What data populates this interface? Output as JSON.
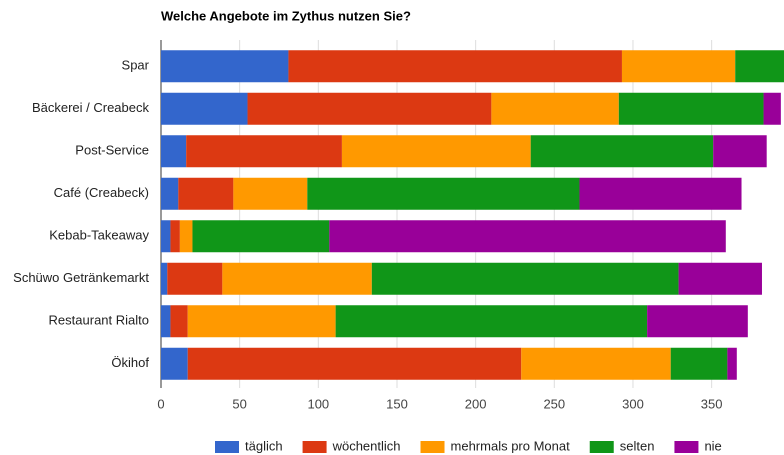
{
  "chart_data": {
    "type": "stacked_bar_horizontal",
    "title": "Welche Angebote im Zythus nutzen Sie?",
    "categories": [
      "Spar",
      "Bäckerei / Creabeck",
      "Post-Service",
      "Café (Creabeck)",
      "Kebab-Takeaway",
      "Schüwo Getränkemarkt",
      "Restaurant Rialto",
      "Ökihof"
    ],
    "series": [
      {
        "name": "täglich",
        "color": "#3366cc",
        "values": [
          81,
          55,
          16,
          11,
          6,
          4,
          6,
          17
        ]
      },
      {
        "name": "wöchentlich",
        "color": "#dc3912",
        "values": [
          212,
          155,
          99,
          35,
          6,
          35,
          11,
          212
        ]
      },
      {
        "name": "mehrmals pro Monat",
        "color": "#ff9900",
        "values": [
          72,
          81,
          120,
          47,
          8,
          95,
          94,
          95
        ]
      },
      {
        "name": "selten",
        "color": "#109618",
        "values": [
          31,
          92,
          116,
          173,
          87,
          195,
          198,
          36
        ]
      },
      {
        "name": "nie",
        "color": "#990099",
        "values": [
          0,
          11,
          34,
          103,
          252,
          53,
          64,
          6
        ]
      }
    ],
    "xlim": [
      0,
      396
    ],
    "xticks": [
      0,
      50,
      100,
      150,
      200,
      250,
      300,
      350
    ],
    "grid": true,
    "legend": "bottom"
  }
}
